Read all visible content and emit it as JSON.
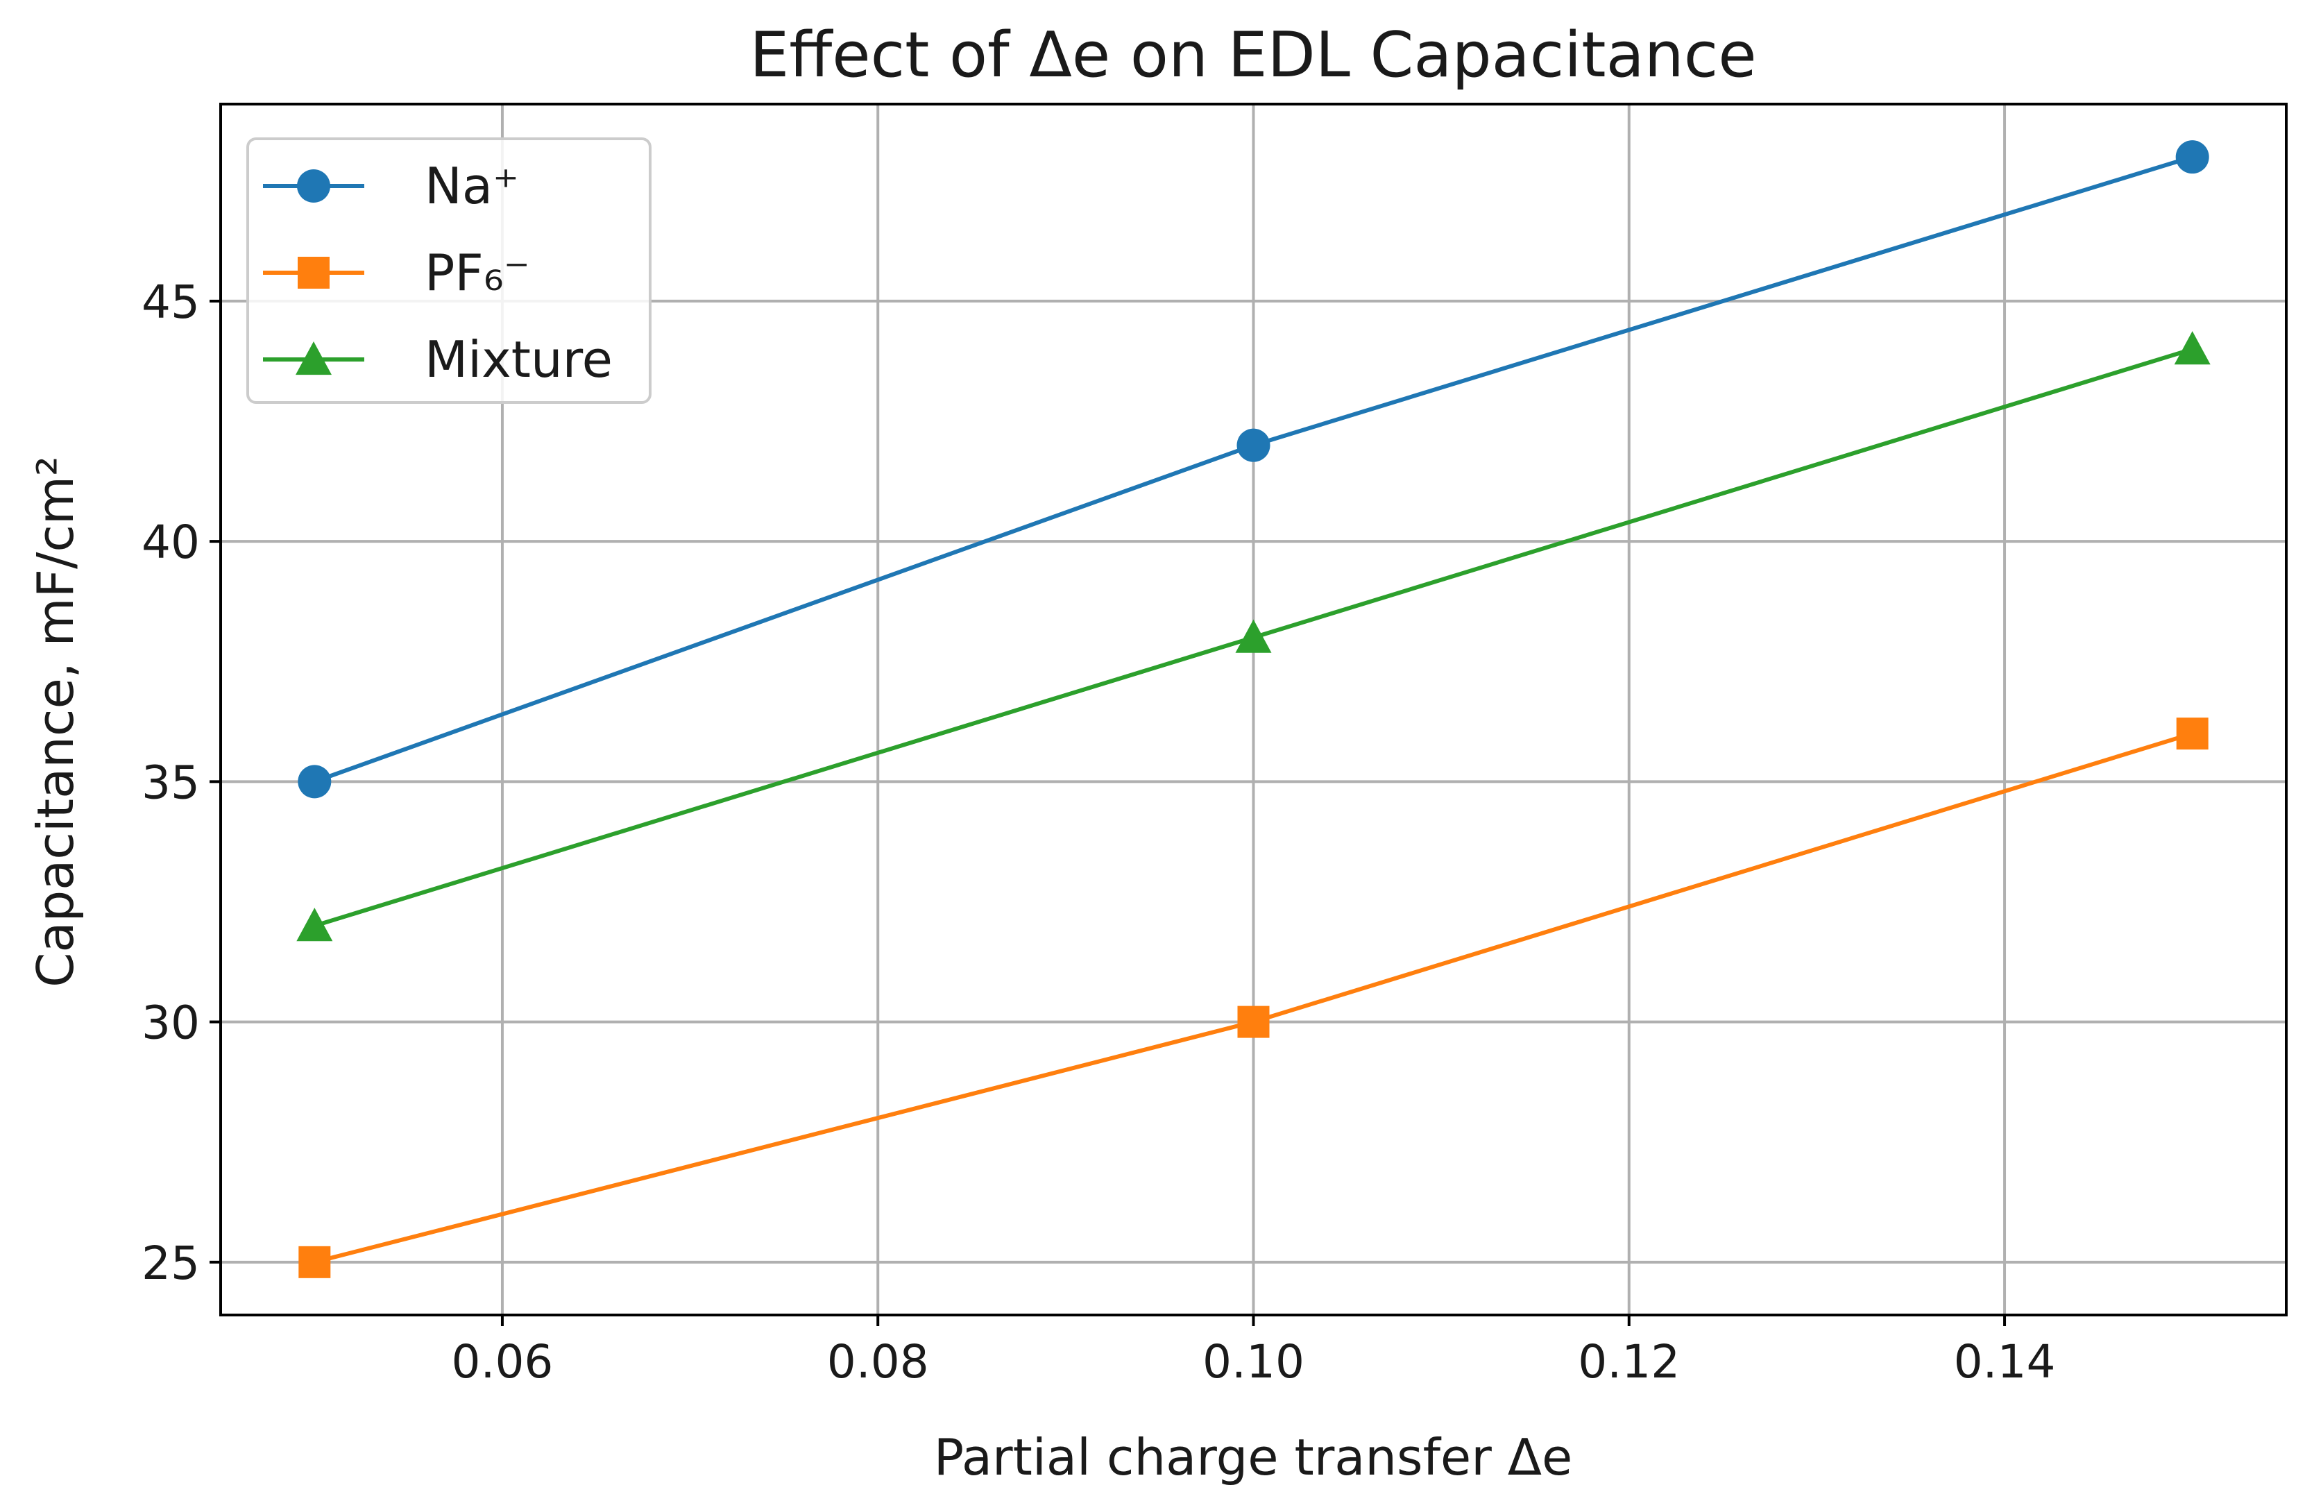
{
  "chart_data": {
    "type": "line",
    "title": "Effect of Δe on EDL Capacitance",
    "xlabel": "Partial charge transfer Δe",
    "ylabel": "Capacitance, mF/cm²",
    "x": [
      0.05,
      0.1,
      0.15
    ],
    "xlim": [
      0.045,
      0.155
    ],
    "ylim": [
      23.9,
      49.1
    ],
    "xticks": [
      0.06,
      0.08,
      0.1,
      0.12,
      0.14
    ],
    "xtick_labels": [
      "0.06",
      "0.08",
      "0.10",
      "0.12",
      "0.14"
    ],
    "yticks": [
      25,
      30,
      35,
      40,
      45
    ],
    "ytick_labels": [
      "25",
      "30",
      "35",
      "40",
      "45"
    ],
    "grid": true,
    "legend_position": "top-left",
    "series": [
      {
        "name": "Na⁺",
        "values": [
          35,
          42,
          48
        ],
        "color": "#1f77b4",
        "marker": "circle"
      },
      {
        "name": "PF₆⁻",
        "values": [
          25,
          30,
          36
        ],
        "color": "#ff7f0e",
        "marker": "square"
      },
      {
        "name": "Mixture",
        "values": [
          32,
          38,
          44
        ],
        "color": "#2ca02c",
        "marker": "triangle"
      }
    ]
  }
}
